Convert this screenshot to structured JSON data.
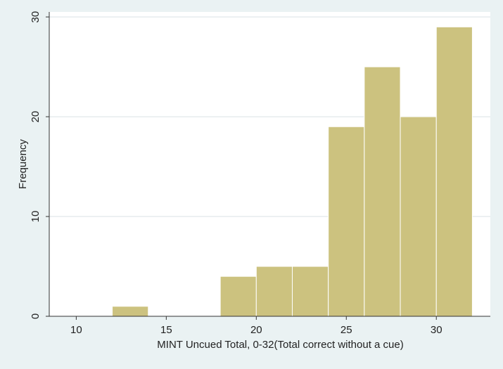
{
  "chart_data": {
    "type": "bar",
    "subtype": "histogram",
    "xlabel": "MINT Uncued Total, 0-32(Total correct without a cue)",
    "ylabel": "Frequency",
    "xlim": [
      8.5,
      33
    ],
    "ylim": [
      0,
      30.5
    ],
    "x_ticks": [
      10,
      15,
      20,
      25,
      30
    ],
    "y_ticks": [
      0,
      10,
      20,
      30
    ],
    "bins": [
      {
        "start": 12,
        "end": 14,
        "value": 1
      },
      {
        "start": 18,
        "end": 20,
        "value": 4
      },
      {
        "start": 20,
        "end": 22,
        "value": 5
      },
      {
        "start": 22,
        "end": 24,
        "value": 5
      },
      {
        "start": 24,
        "end": 26,
        "value": 19
      },
      {
        "start": 26,
        "end": 28,
        "value": 25
      },
      {
        "start": 28,
        "end": 30,
        "value": 20
      },
      {
        "start": 30,
        "end": 32,
        "value": 29
      }
    ],
    "grid": "horizontal",
    "colors": {
      "background": "#eaf2f3",
      "plot_background": "#ffffff",
      "bar_fill": "#ccc27f",
      "bar_edge": "#ffffff",
      "grid": "#e6ecee",
      "axis": "#333333"
    }
  }
}
